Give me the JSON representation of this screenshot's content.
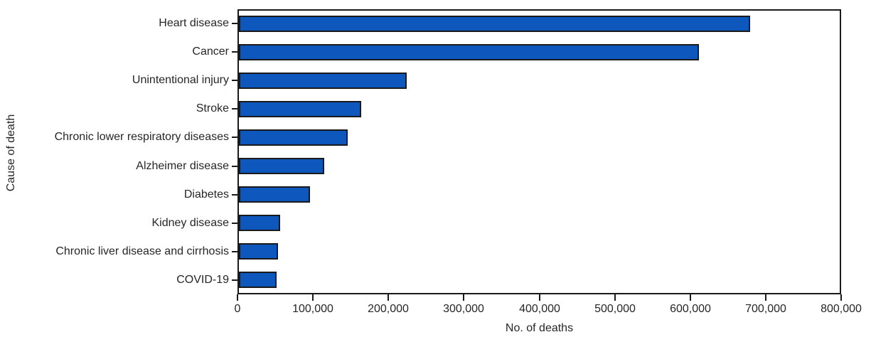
{
  "chart_data": {
    "type": "bar",
    "orientation": "horizontal",
    "title": "",
    "xlabel": "No. of deaths",
    "ylabel": "Cause of death",
    "xlim": [
      0,
      800000
    ],
    "categories": [
      "Heart disease",
      "Cancer",
      "Unintentional injury",
      "Stroke",
      "Chronic lower respiratory diseases",
      "Alzheimer disease",
      "Diabetes",
      "Kidney disease",
      "Chronic liver disease and cirrhosis",
      "COVID-19"
    ],
    "values": [
      681000,
      613000,
      223000,
      163000,
      145000,
      114000,
      95000,
      55000,
      52000,
      50000
    ],
    "xticks": {
      "values": [
        0,
        100000,
        200000,
        300000,
        400000,
        500000,
        600000,
        700000,
        800000
      ],
      "labels": [
        "0",
        "100,000",
        "200,000",
        "300,000",
        "400,000",
        "500,000",
        "600,000",
        "700,000",
        "800,000"
      ]
    },
    "grid": false,
    "legend": false,
    "colors": {
      "bar_fill": "#0d57bd",
      "bar_border": "#1a1a1a",
      "axis": "#1a1a1a",
      "text": "#262626"
    }
  }
}
